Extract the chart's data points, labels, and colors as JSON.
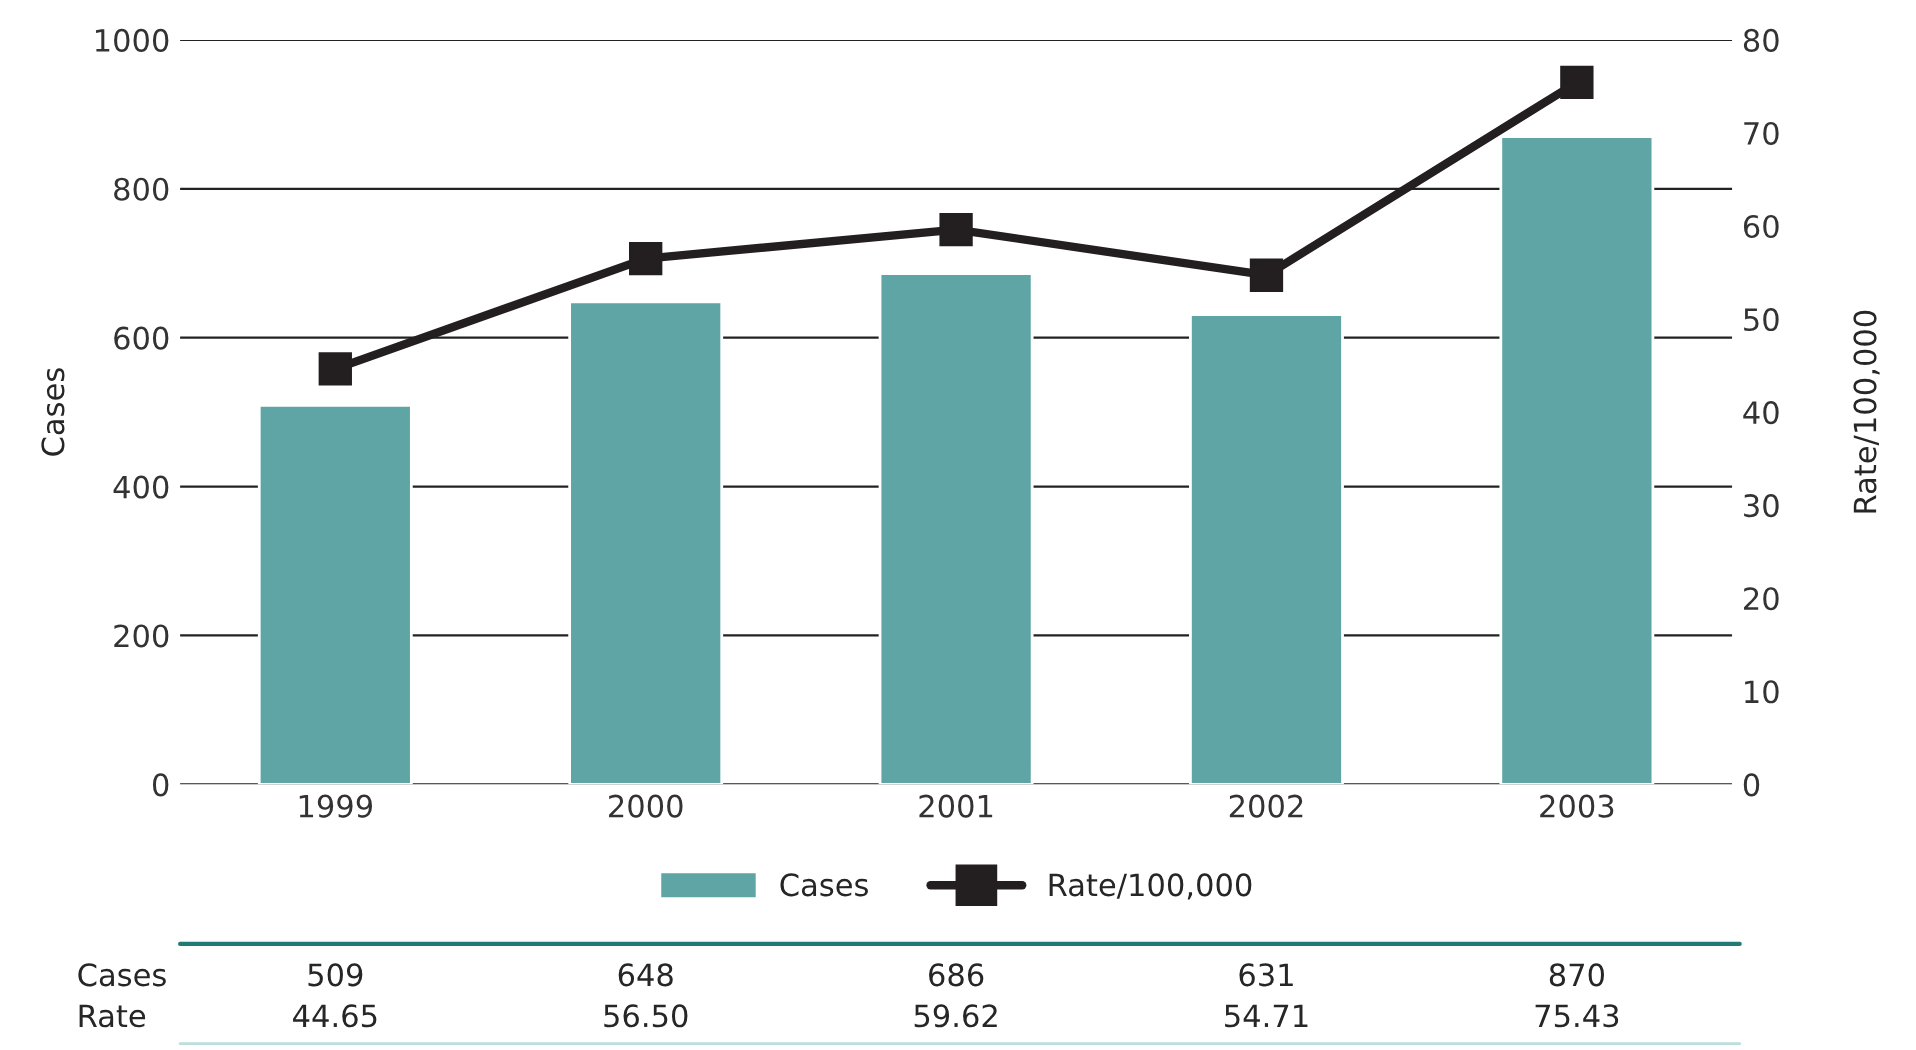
{
  "chart_data": {
    "type": "bar",
    "categories": [
      "1999",
      "2000",
      "2001",
      "2002",
      "2003"
    ],
    "ylabel": "Cases",
    "y2label": "Rate/100,000",
    "ylim": [
      0,
      1000
    ],
    "yticks": [
      0,
      200,
      400,
      600,
      800,
      1000
    ],
    "y2lim": [
      0,
      80
    ],
    "y2ticks": [
      0,
      10,
      20,
      30,
      40,
      50,
      60,
      70,
      80
    ],
    "grid": "y",
    "legend": "bottom",
    "annotations": [
      "Cases",
      "Rate"
    ],
    "series": [
      {
        "name": "Cases",
        "color": "#5fa5a5",
        "values": [
          509,
          648,
          686,
          631,
          870
        ],
        "value_labels": [
          "509",
          "648",
          "686",
          "631",
          "870"
        ]
      },
      {
        "name": "Rate/100,000",
        "type": "line",
        "axis": "y2",
        "marker": "square",
        "color": "#231f20",
        "values": [
          44.65,
          56.5,
          59.62,
          54.71,
          75.43
        ],
        "value_labels": [
          "44.65",
          "56.50",
          "59.62",
          "54.71",
          "75.43"
        ]
      }
    ]
  }
}
